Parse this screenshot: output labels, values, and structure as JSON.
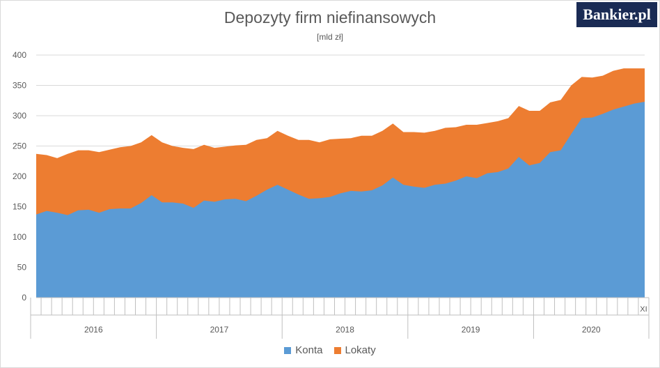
{
  "header": {
    "title": "Depozyty firm niefinansowych",
    "subtitle": "[mld zł]",
    "logo_text": "Bankier.pl"
  },
  "legend": {
    "items": [
      {
        "label": "Konta",
        "color": "#5b9bd5"
      },
      {
        "label": "Lokaty",
        "color": "#ed7d31"
      }
    ]
  },
  "chart_data": {
    "type": "area",
    "stacked": true,
    "x_start": "2016-01",
    "x_end": "2020-11",
    "period": "monthly",
    "year_labels": [
      "2016",
      "2017",
      "2018",
      "2019",
      "2020"
    ],
    "last_point_label": "XI",
    "ylim": [
      0,
      400
    ],
    "yticks": [
      0,
      50,
      100,
      150,
      200,
      250,
      300,
      350,
      400
    ],
    "grid": true,
    "legend_position": "bottom",
    "series": [
      {
        "name": "Konta",
        "color": "#5b9bd5",
        "values": [
          137,
          143,
          140,
          136,
          144,
          145,
          140,
          146,
          147,
          147,
          156,
          169,
          157,
          157,
          155,
          148,
          160,
          158,
          162,
          163,
          159,
          168,
          178,
          186,
          178,
          170,
          163,
          164,
          166,
          172,
          176,
          175,
          177,
          185,
          198,
          186,
          183,
          181,
          186,
          188,
          193,
          200,
          197,
          205,
          207,
          213,
          232,
          218,
          222,
          240,
          243,
          270,
          296,
          297,
          303,
          310,
          315,
          320,
          323
        ]
      },
      {
        "name": "Lokaty",
        "color": "#ed7d31",
        "values": [
          100,
          92,
          90,
          101,
          99,
          98,
          100,
          98,
          101,
          103,
          100,
          99,
          99,
          93,
          92,
          97,
          92,
          89,
          87,
          88,
          93,
          92,
          85,
          89,
          89,
          90,
          97,
          92,
          95,
          90,
          87,
          92,
          90,
          90,
          89,
          87,
          90,
          91,
          89,
          92,
          88,
          85,
          88,
          83,
          84,
          83,
          84,
          90,
          86,
          82,
          83,
          80,
          68,
          66,
          63,
          64,
          63,
          58,
          55
        ]
      }
    ]
  }
}
